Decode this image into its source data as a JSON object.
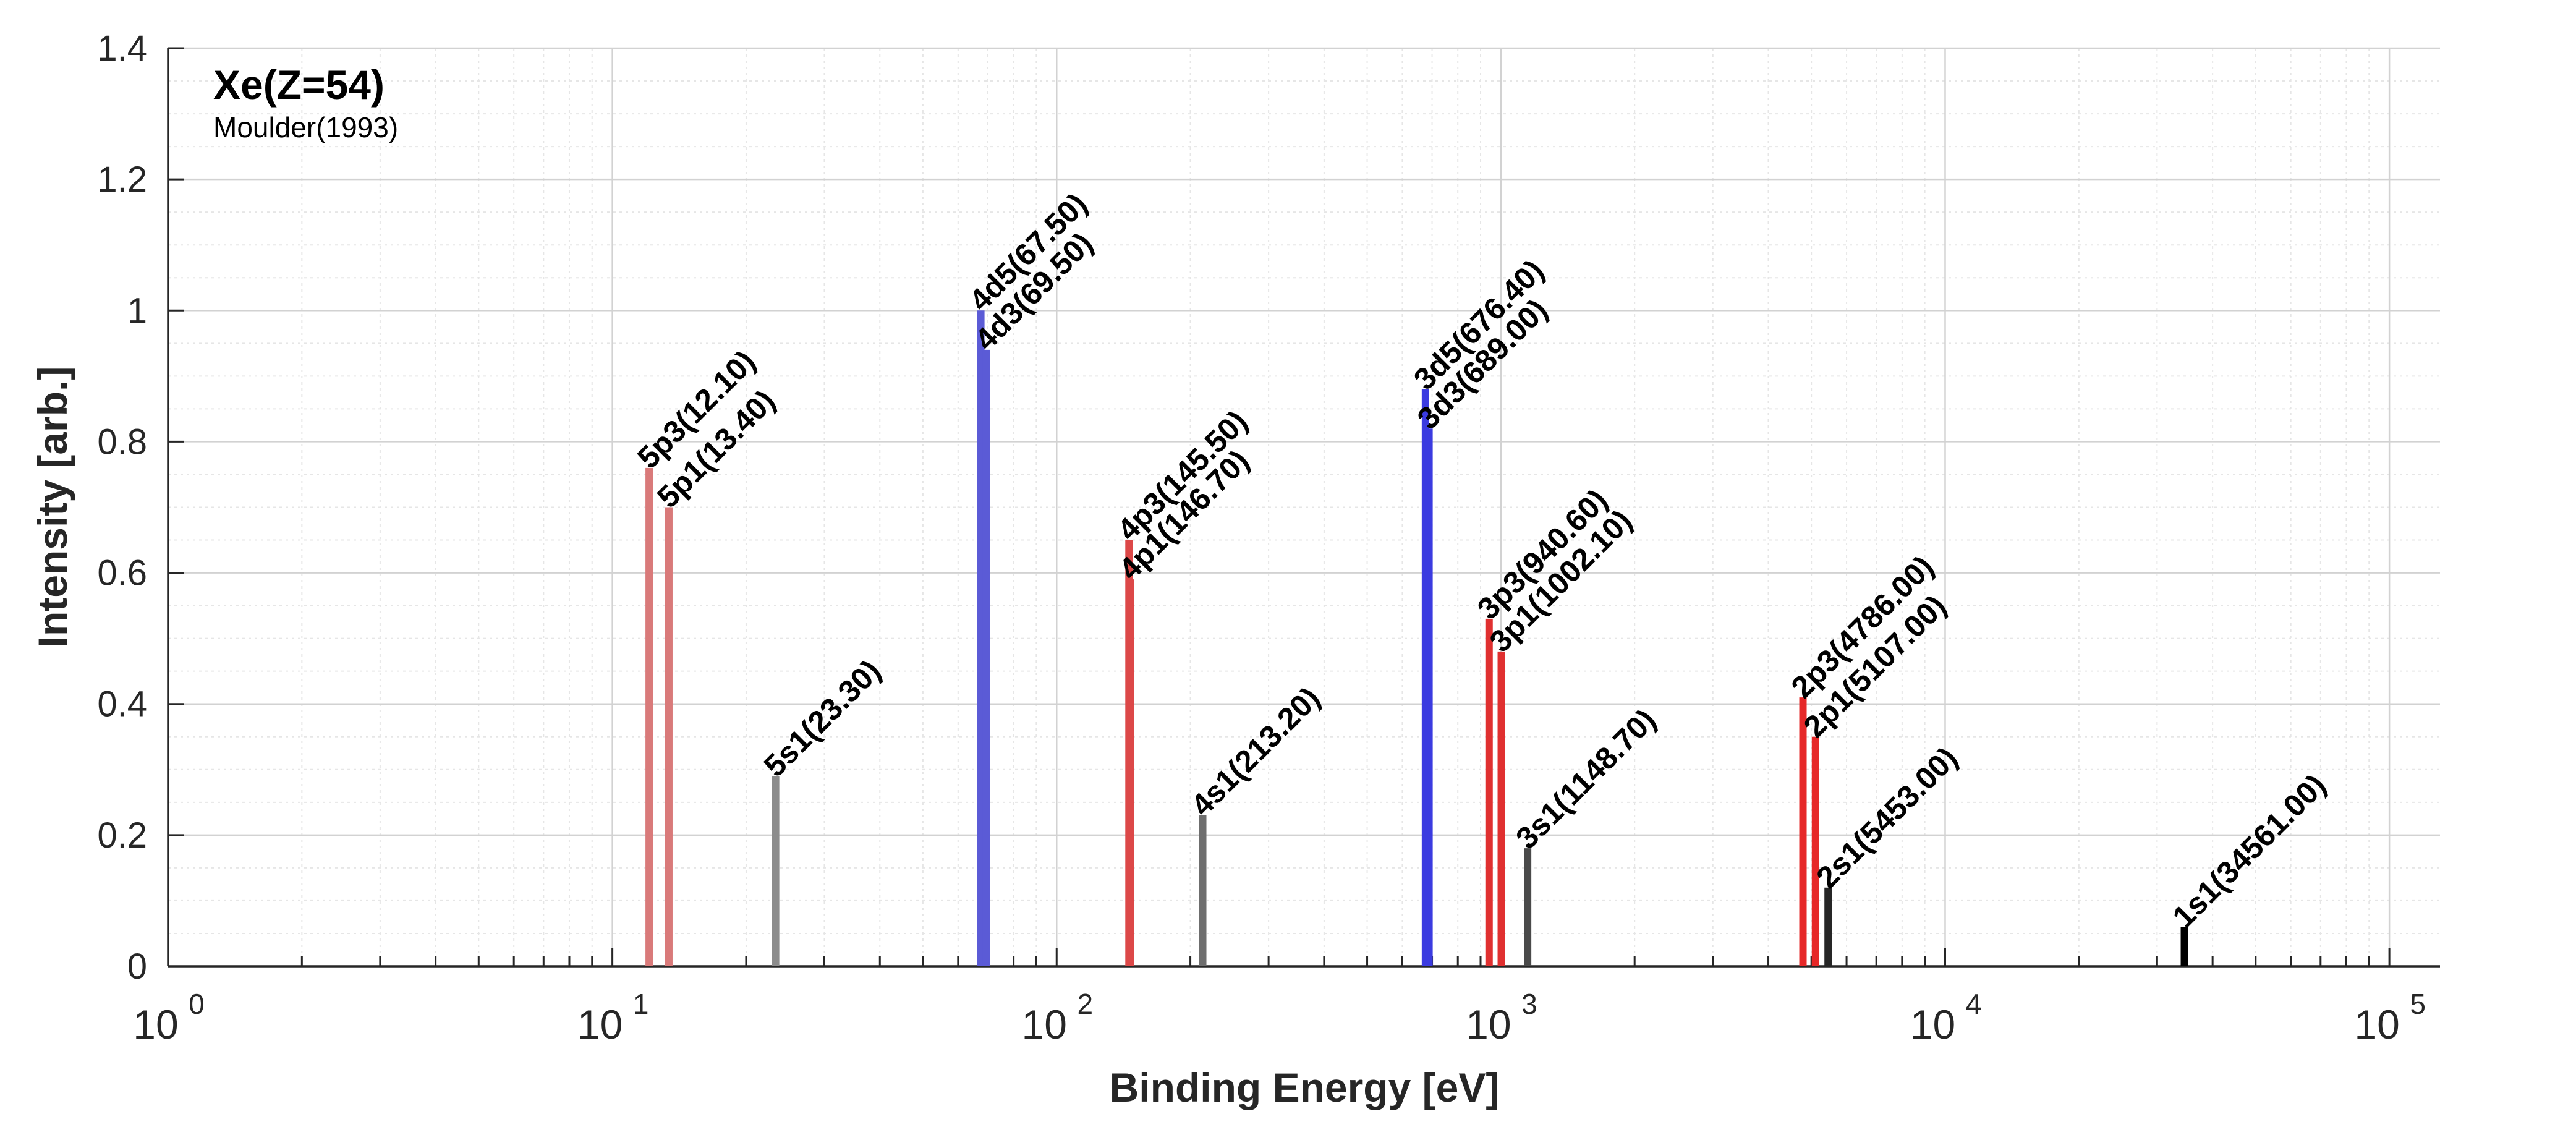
{
  "chart_data": {
    "type": "bar",
    "title": "Xe(Z=54)",
    "subtitle": "Moulder(1993)",
    "xlabel": "Binding Energy [eV]",
    "ylabel": "Intensity [arb.]",
    "xscale": "log",
    "xlim": [
      1,
      130000
    ],
    "ylim": [
      0,
      1.4
    ],
    "grid": true,
    "minor_grid": true,
    "yticks": [
      0,
      0.2,
      0.4,
      0.6,
      0.8,
      1,
      1.2,
      1.4
    ],
    "ytick_labels": [
      "0",
      "0.2",
      "0.4",
      "0.6",
      "0.8",
      "1",
      "1.2",
      "1.4"
    ],
    "xticks": [
      1,
      10,
      100,
      1000,
      10000,
      100000
    ],
    "xtick_labels": [
      {
        "base": "10",
        "exp": "0"
      },
      {
        "base": "10",
        "exp": "1"
      },
      {
        "base": "10",
        "exp": "2"
      },
      {
        "base": "10",
        "exp": "3"
      },
      {
        "base": "10",
        "exp": "4"
      },
      {
        "base": "10",
        "exp": "5"
      }
    ],
    "series": [
      {
        "label": "5p3(12.10)",
        "x": 12.1,
        "y": 0.76,
        "color": "#d97a7a"
      },
      {
        "label": "5p1(13.40)",
        "x": 13.4,
        "y": 0.7,
        "color": "#d97a7a"
      },
      {
        "label": "5s1(23.30)",
        "x": 23.3,
        "y": 0.29,
        "color": "#8c8c8c"
      },
      {
        "label": "4d5(67.50)",
        "x": 67.5,
        "y": 1.0,
        "color": "#5b5bd6"
      },
      {
        "label": "4d3(69.50)",
        "x": 69.5,
        "y": 0.94,
        "color": "#5b5bd6"
      },
      {
        "label": "4p3(145.50)",
        "x": 145.5,
        "y": 0.65,
        "color": "#dc4848"
      },
      {
        "label": "4p1(146.70)",
        "x": 146.7,
        "y": 0.59,
        "color": "#dc4848"
      },
      {
        "label": "4s1(213.20)",
        "x": 213.2,
        "y": 0.23,
        "color": "#6e6e6e"
      },
      {
        "label": "3d5(676.40)",
        "x": 676.4,
        "y": 0.88,
        "color": "#3b3be0"
      },
      {
        "label": "3d3(689.00)",
        "x": 689.0,
        "y": 0.82,
        "color": "#3b3be0"
      },
      {
        "label": "3p3(940.60)",
        "x": 940.6,
        "y": 0.53,
        "color": "#e03030"
      },
      {
        "label": "3p1(1002.10)",
        "x": 1002.1,
        "y": 0.48,
        "color": "#e03030"
      },
      {
        "label": "3s1(1148.70)",
        "x": 1148.7,
        "y": 0.18,
        "color": "#4a4a4a"
      },
      {
        "label": "2p3(4786.00)",
        "x": 4786.0,
        "y": 0.41,
        "color": "#e62828"
      },
      {
        "label": "2p1(5107.00)",
        "x": 5107.0,
        "y": 0.35,
        "color": "#e62828"
      },
      {
        "label": "2s1(5453.00)",
        "x": 5453.0,
        "y": 0.12,
        "color": "#262626"
      },
      {
        "label": "1s1(34561.00)",
        "x": 34561.0,
        "y": 0.06,
        "color": "#000000"
      }
    ]
  }
}
